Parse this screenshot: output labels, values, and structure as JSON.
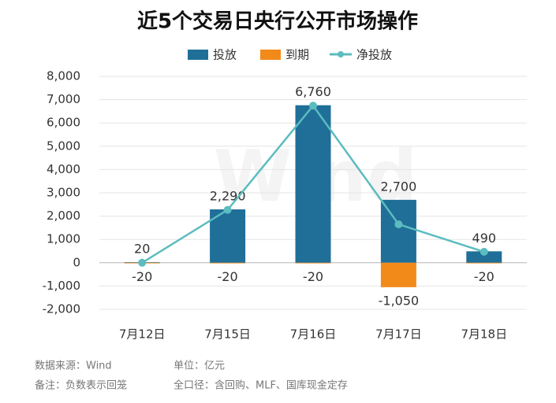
{
  "chart_data": {
    "type": "bar-line",
    "title": "近5个交易日央行公开市场操作",
    "categories": [
      "7月12日",
      "7月15日",
      "7月16日",
      "7月17日",
      "7月18日"
    ],
    "series": [
      {
        "name": "投放",
        "type": "bar",
        "color": "#1f6f99",
        "values": [
          20,
          2290,
          6760,
          2700,
          490
        ],
        "value_labels": [
          "20",
          "2,290",
          "6,760",
          "2,700",
          "490"
        ]
      },
      {
        "name": "到期",
        "type": "bar",
        "color": "#f28a1a",
        "values": [
          -20,
          -20,
          -20,
          -1050,
          -20
        ],
        "value_labels": [
          "-20",
          "-20",
          "-20",
          "-1,050",
          "-20"
        ]
      },
      {
        "name": "净投放",
        "type": "line",
        "color": "#5cbcbf",
        "values": [
          0,
          2270,
          6740,
          1650,
          470
        ]
      }
    ],
    "ylim": [
      -2000,
      8000
    ],
    "yticks": [
      {
        "value": -2000,
        "label": "-2,000"
      },
      {
        "value": -1000,
        "label": "-1,000"
      },
      0,
      {
        "value": 1000,
        "label": "1,000"
      },
      {
        "value": 2000,
        "label": "2,000"
      },
      {
        "value": 3000,
        "label": "3,000"
      },
      {
        "value": 4000,
        "label": "4,000"
      },
      {
        "value": 5000,
        "label": "5,000"
      },
      {
        "value": 6000,
        "label": "6,000"
      },
      {
        "value": 7000,
        "label": "7,000"
      },
      {
        "value": 8000,
        "label": "8,000"
      }
    ],
    "grid": true,
    "legend": "top",
    "watermark": "Wind",
    "notes": [
      "数据来源：Wind",
      "单位：亿元",
      "备注：负数表示回笼",
      "全口径：含回购、MLF、国库现金定存"
    ]
  }
}
